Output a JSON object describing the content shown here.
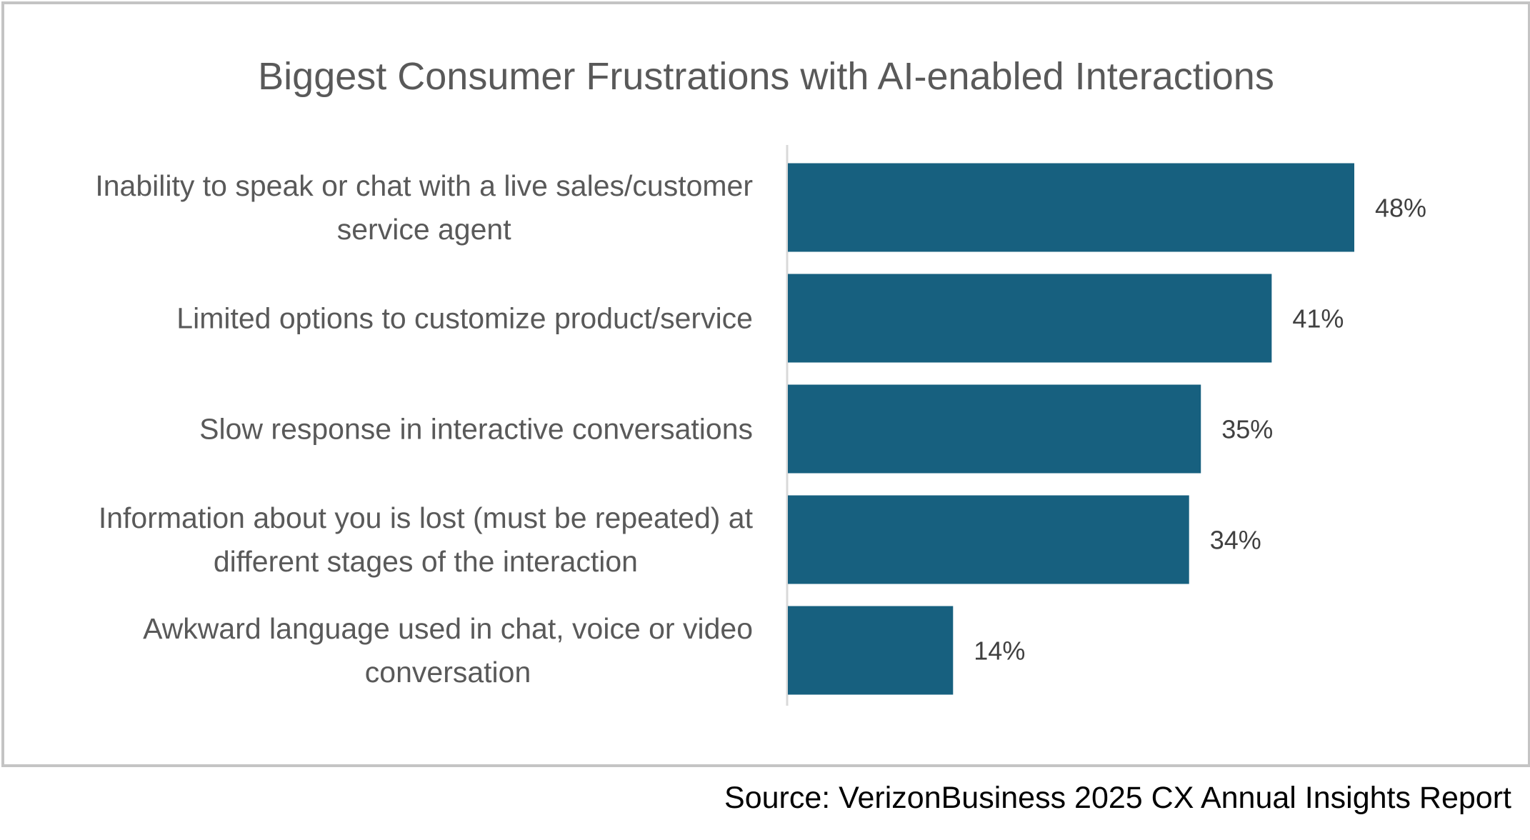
{
  "chart_data": {
    "type": "bar",
    "orientation": "horizontal",
    "title": "Biggest Consumer Frustrations with AI-enabled Interactions",
    "categories": [
      [
        "Inability to speak or chat with a live sales/customer",
        "service agent"
      ],
      [
        "Limited options to customize product/service"
      ],
      [
        "Slow response in interactive conversations"
      ],
      [
        "Information about you is lost (must be repeated) at",
        "different stages of the interaction"
      ],
      [
        "Awkward language used in chat, voice or video",
        "conversation"
      ]
    ],
    "values": [
      48,
      41,
      35,
      34,
      14
    ],
    "value_labels": [
      "48%",
      "41%",
      "35%",
      "34%",
      "14%"
    ],
    "xlim": [
      0,
      60
    ],
    "grid": false,
    "legend": "none",
    "bar_color": "#17607f"
  },
  "source": "Source: VerizonBusiness 2025 CX Annual Insights Report"
}
